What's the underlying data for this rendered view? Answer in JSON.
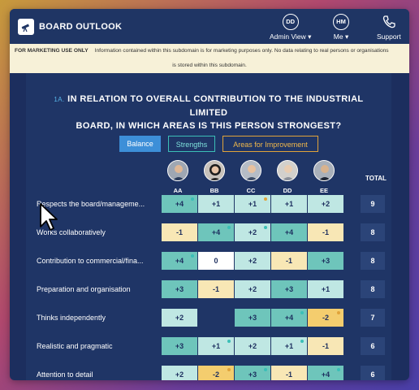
{
  "header": {
    "brand": "BOARD OUTLOOK",
    "nav": [
      {
        "initials": "DD",
        "label": "Admin View ▾"
      },
      {
        "initials": "HM",
        "label": "Me ▾"
      },
      {
        "icon": "phone-icon",
        "label": "Support"
      }
    ]
  },
  "notice": {
    "tag": "FOR MARKETING USE ONLY",
    "line1": "Information contained within this subdomain is for marketing purposes only. No data relating to real persons or organisations",
    "line2": "is stored within this subdomain."
  },
  "question": {
    "number": "1A.",
    "text_line1": "IN RELATION TO OVERALL CONTRIBUTION TO THE INDUSTRIAL LIMITED",
    "text_line2": "BOARD, IN WHICH AREAS IS THIS PERSON STRONGEST?"
  },
  "tabs": [
    "Balance",
    "Strengths",
    "Areas for Improvement"
  ],
  "people": [
    "AA",
    "BB",
    "CC",
    "DD",
    "EE"
  ],
  "total_label": "TOTAL",
  "rows": [
    {
      "label": "Respects the board/manageme...",
      "cells": [
        [
          "+4",
          "teal",
          "teal"
        ],
        [
          "+1",
          "light",
          ""
        ],
        [
          "+1",
          "light",
          "amber"
        ],
        [
          "+1",
          "light",
          ""
        ],
        [
          "+2",
          "light",
          ""
        ]
      ],
      "total": "9"
    },
    {
      "label": "Works collaboratively",
      "cells": [
        [
          "-1",
          "yellow",
          ""
        ],
        [
          "+4",
          "teal",
          "teal"
        ],
        [
          "+2",
          "light",
          "teal"
        ],
        [
          "+4",
          "teal",
          ""
        ],
        [
          "-1",
          "yellow",
          ""
        ]
      ],
      "total": "8"
    },
    {
      "label": "Contribution to commercial/fina...",
      "cells": [
        [
          "+4",
          "teal",
          "teal"
        ],
        [
          "0",
          "white",
          ""
        ],
        [
          "+2",
          "light",
          ""
        ],
        [
          "-1",
          "yellow",
          ""
        ],
        [
          "+3",
          "teal",
          ""
        ]
      ],
      "total": "8"
    },
    {
      "label": "Preparation and organisation",
      "cells": [
        [
          "+3",
          "teal",
          ""
        ],
        [
          "-1",
          "yellow",
          ""
        ],
        [
          "+2",
          "light",
          ""
        ],
        [
          "+3",
          "teal",
          ""
        ],
        [
          "+1",
          "light",
          ""
        ]
      ],
      "total": "8"
    },
    {
      "label": "Thinks independently",
      "cells": [
        [
          "+2",
          "light",
          ""
        ],
        [
          "",
          "empty",
          ""
        ],
        [
          "+3",
          "teal",
          ""
        ],
        [
          "+4",
          "teal",
          "teal"
        ],
        [
          "-2",
          "amber",
          "amber"
        ]
      ],
      "total": "7"
    },
    {
      "label": "Realistic and pragmatic",
      "cells": [
        [
          "+3",
          "teal",
          ""
        ],
        [
          "+1",
          "light",
          "teal"
        ],
        [
          "+2",
          "light",
          ""
        ],
        [
          "+1",
          "light",
          "teal"
        ],
        [
          "-1",
          "yellow",
          ""
        ]
      ],
      "total": "6"
    },
    {
      "label": "Attention to detail",
      "cells": [
        [
          "+2",
          "light",
          ""
        ],
        [
          "-2",
          "amber",
          "amber"
        ],
        [
          "+3",
          "teal",
          "teal"
        ],
        [
          "-1",
          "yellow",
          ""
        ],
        [
          "+4",
          "teal",
          "teal"
        ]
      ],
      "total": "6"
    }
  ]
}
